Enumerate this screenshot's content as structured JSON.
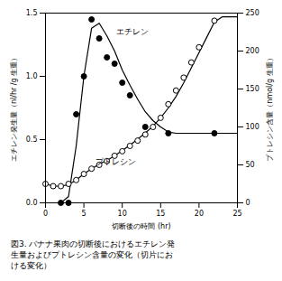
{
  "chart_data": {
    "type": "line",
    "xlabel": "切断後の時間 (hr)",
    "ylabel": "エチレン発生量（nl/hr /g 生重）",
    "y2label": "プトレシン含量（nmol/g 生重）",
    "xlim": [
      0,
      25
    ],
    "ylim": [
      0.0,
      1.5
    ],
    "y2lim": [
      0,
      250
    ],
    "xticks": [
      0,
      5,
      10,
      15,
      20,
      25
    ],
    "yticks": [
      {
        "value": 0.0,
        "label": "0.0"
      },
      0.5,
      {
        "value": 1.0,
        "label": "1.0"
      },
      1.5
    ],
    "y2ticks": [
      0,
      50,
      100,
      150,
      200,
      250
    ],
    "grid": false,
    "series": [
      {
        "type": "line",
        "axis": "y",
        "color": "#000000",
        "line_style": "solid",
        "x": [
          0,
          1,
          2,
          3,
          4,
          5,
          6,
          7,
          8,
          9,
          10,
          11,
          12,
          13,
          14,
          15,
          16,
          17,
          18,
          19,
          20,
          21,
          22,
          23,
          24,
          25
        ],
        "values": [
          0.0,
          0.0,
          0.0,
          0.05,
          0.45,
          1.0,
          1.38,
          1.42,
          1.32,
          1.2,
          1.05,
          0.93,
          0.82,
          0.72,
          0.65,
          0.6,
          0.56,
          0.55,
          0.55,
          0.55,
          0.55,
          0.55,
          0.55,
          0.55,
          0.55,
          0.55
        ]
      },
      {
        "type": "scatter",
        "axis": "y",
        "color": "#000000",
        "marker": "circle",
        "x": [
          2,
          3,
          4,
          5,
          6,
          7,
          8,
          9,
          10,
          11,
          13,
          16,
          22
        ],
        "values": [
          0.0,
          0.0,
          0.7,
          1.0,
          1.45,
          1.3,
          1.15,
          1.1,
          0.95,
          0.85,
          0.6,
          0.55,
          0.55
        ]
      },
      {
        "type": "line",
        "axis": "y2",
        "color": "#000000",
        "line_style": "solid",
        "x": [
          0,
          1,
          2,
          3,
          4,
          5,
          6,
          7,
          8,
          9,
          10,
          11,
          12,
          13,
          14,
          15,
          16,
          17,
          18,
          19,
          20,
          21,
          22,
          23,
          24,
          25
        ],
        "values": [
          25,
          22,
          22,
          24,
          30,
          38,
          45,
          51,
          56,
          62,
          69,
          76,
          84,
          92,
          101,
          112,
          125,
          140,
          158,
          178,
          198,
          218,
          238,
          245,
          245,
          245
        ]
      },
      {
        "type": "scatter",
        "axis": "y2",
        "color": "#000000",
        "marker": "open_circle",
        "x": [
          0,
          1,
          2,
          3,
          4,
          5,
          6,
          7,
          8,
          9,
          10,
          11,
          12,
          13,
          14,
          15,
          16,
          17,
          18,
          19,
          20,
          22
        ],
        "values": [
          25,
          22,
          22,
          25,
          30,
          38,
          45,
          50,
          55,
          62,
          68,
          75,
          82,
          90,
          100,
          112,
          130,
          148,
          165,
          185,
          205,
          240
        ]
      }
    ],
    "annotations": [
      {
        "text": "エチレン",
        "x": 9.2,
        "y": 1.38
      },
      {
        "text": "プトレシン",
        "x": 6.5,
        "y": 0.35
      }
    ],
    "caption": [
      "図3.  バナナ果肉の切断後におけるエチレン発",
      "生量およびプトレシン含量の変化（切片にお",
      "ける変化）"
    ]
  }
}
